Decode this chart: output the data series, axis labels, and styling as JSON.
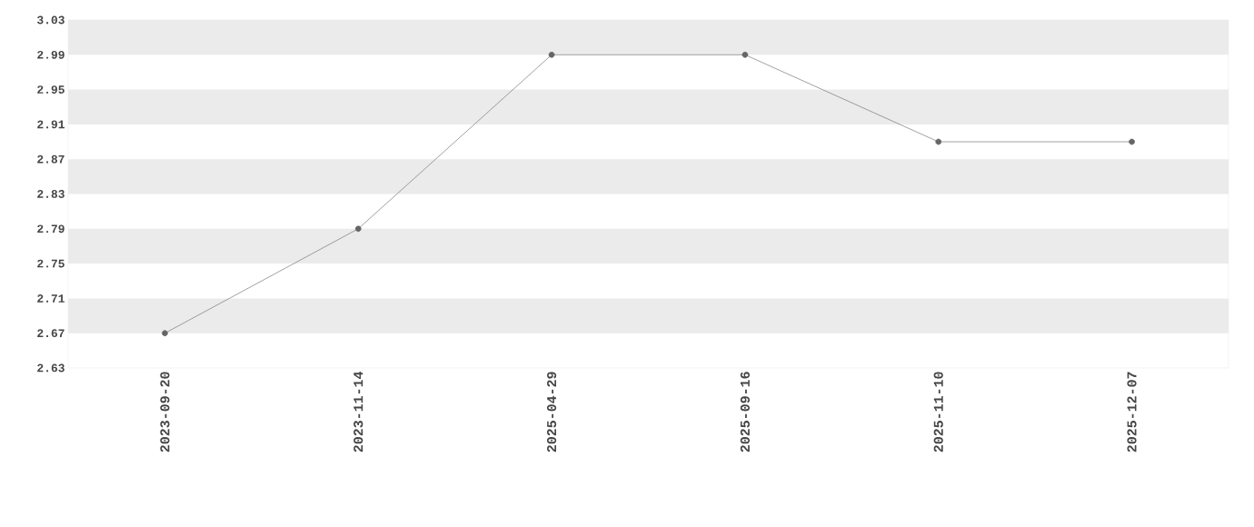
{
  "chart_data": {
    "type": "line",
    "categories": [
      "2023-09-20",
      "2023-11-14",
      "2025-04-29",
      "2025-09-16",
      "2025-11-10",
      "2025-12-07"
    ],
    "series": [
      {
        "color": "#777777",
        "values": [
          2.67,
          2.79,
          2.99,
          2.99,
          2.89,
          2.89
        ]
      }
    ],
    "ylim": [
      2.63,
      3.03
    ],
    "yticks": [
      2.63,
      2.67,
      2.71,
      2.75,
      2.79,
      2.83,
      2.87,
      2.91,
      2.95,
      2.99,
      3.03
    ],
    "bands": [
      {
        "axis": "y",
        "from": 2.67,
        "to": 2.71,
        "color": "#ebebeb"
      },
      {
        "axis": "y",
        "from": 2.75,
        "to": 2.79,
        "color": "#ebebeb"
      },
      {
        "axis": "y",
        "from": 2.83,
        "to": 2.87,
        "color": "#ebebeb"
      },
      {
        "axis": "y",
        "from": 2.91,
        "to": 2.95,
        "color": "#ebebeb"
      },
      {
        "axis": "y",
        "from": 2.99,
        "to": 3.03,
        "color": "#ebebeb"
      }
    ],
    "marker": "circle",
    "line_style": "solid"
  }
}
